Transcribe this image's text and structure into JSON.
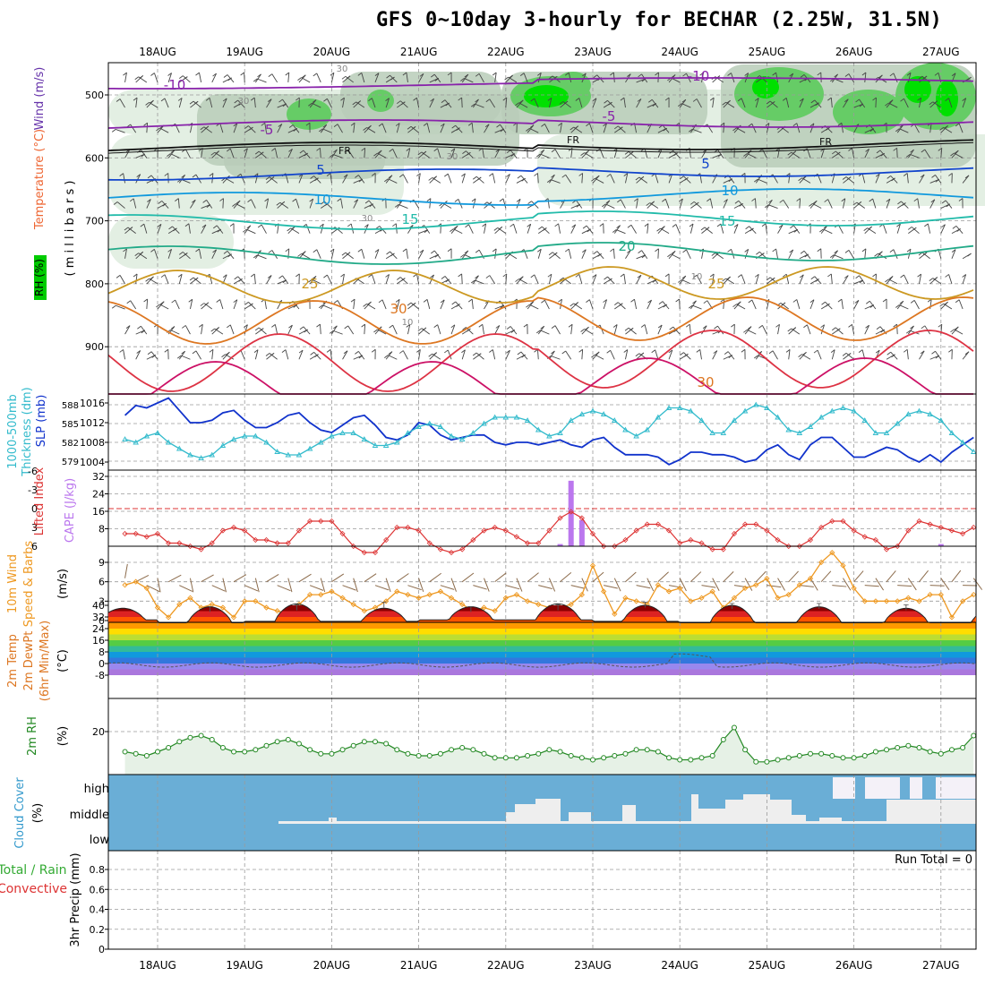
{
  "title": "GFS 0~10day 3-hourly for BECHAR (2.25W, 31.5N)",
  "dates": [
    "18AUG",
    "19AUG",
    "20AUG",
    "21AUG",
    "22AUG",
    "23AUG",
    "24AUG",
    "25AUG",
    "26AUG",
    "27AUG"
  ],
  "colors": {
    "frame": "#000000",
    "grid": "#9a9a9a",
    "rh_light": "#e3efe3",
    "rh_mid": "#b9ccb9",
    "rh_dark": "#66cc66",
    "rh_bright": "#00e000",
    "slp": "#1133cc",
    "thickness": "#33bbcc",
    "lifted_index": "#dd3333",
    "cape": "#bb77ee",
    "wind_speed": "#ee9922",
    "wind_barb": "#8b6a4a",
    "rh2m_fill": "#e6f1e6",
    "rh2m_line": "#228822",
    "cloud_bg": "#6aaed6",
    "cloud_fill": "#eeeeee"
  },
  "panels": {
    "upper": {
      "ylabel_wind": "Wind (m/s)",
      "ylabel_temp": "Temperature (°C)",
      "ylabel_rh": "RH (%)",
      "ylabel_mb": "( m i l l i b a r s )",
      "levels": [
        "500",
        "600",
        "700",
        "800",
        "900"
      ],
      "isotherm_labels": [
        {
          "text": "-10",
          "level": "-10"
        },
        {
          "text": "-10",
          "level": "-10"
        },
        {
          "text": "-5",
          "level": "-5"
        },
        {
          "text": "-5",
          "level": "-5"
        },
        {
          "text": "FR",
          "level": "0"
        },
        {
          "text": "FR",
          "level": "0"
        },
        {
          "text": "FR",
          "level": "0"
        },
        {
          "text": "5",
          "level": "5"
        },
        {
          "text": "5",
          "level": "5"
        },
        {
          "text": "10",
          "level": "10"
        },
        {
          "text": "10",
          "level": "10"
        },
        {
          "text": "15",
          "level": "15"
        },
        {
          "text": "15",
          "level": "15"
        },
        {
          "text": "20",
          "level": "20"
        },
        {
          "text": "25",
          "level": "25"
        },
        {
          "text": "25",
          "level": "25"
        },
        {
          "text": "30",
          "level": "30"
        },
        {
          "text": "30",
          "level": "30"
        }
      ],
      "rh_labels": [
        "30",
        "30",
        "30",
        "30",
        "10",
        "10"
      ]
    },
    "pressure": {
      "ylabel_thk": "1000-500mb Thickness (dm)",
      "ylabel_slp": "SLP (mb)",
      "thk_ticks": [
        "588",
        "585",
        "582",
        "579"
      ],
      "slp_ticks": [
        "1016",
        "1012",
        "1008",
        "1004"
      ]
    },
    "stability": {
      "ylabel_li": "Lifted Index",
      "ylabel_cape": "CAPE (J/kg)",
      "li_ticks": [
        "6",
        "3",
        "0",
        "-3",
        "-6"
      ],
      "cape_ticks": [
        "32",
        "24",
        "16",
        "8"
      ]
    },
    "wind10m": {
      "ylabel_main": "10m Wind",
      "ylabel_sub": "Speed & Barbs",
      "unit": "(m/s)",
      "ticks": [
        "9",
        "6",
        "3",
        "0"
      ]
    },
    "temp2m": {
      "ylabel_a": "2m Temp",
      "ylabel_b": "2m DewPt",
      "ylabel_c": "(6hr Min/Max)",
      "unit": "(°C)",
      "ticks": [
        "40",
        "32",
        "24",
        "16",
        "8",
        "0",
        "-8"
      ]
    },
    "rh2m": {
      "ylabel": "2m RH",
      "unit": "(%)",
      "ticks": [
        "20"
      ]
    },
    "cloud": {
      "ylabel": "Cloud Cover",
      "unit": "(%)",
      "levels": [
        "high",
        "middle",
        "low"
      ]
    },
    "precip": {
      "ylabel_a": "Total / Rain",
      "ylabel_b": "Convective",
      "ylabel_c": "3hr Precip (mm)",
      "ticks": [
        "0.8",
        "0.6",
        "0.4",
        "0.2",
        "0"
      ],
      "run_total": "Run Total = 0"
    }
  },
  "chart_data": {
    "type": "line",
    "x": [
      "17AUG 15Z",
      "17AUG 18Z",
      "17AUG 21Z",
      "18AUG 00Z",
      "18AUG 03Z",
      "18AUG 06Z",
      "18AUG 09Z",
      "18AUG 12Z",
      "18AUG 15Z",
      "18AUG 18Z",
      "18AUG 21Z",
      "19AUG 00Z",
      "19AUG 03Z",
      "19AUG 06Z",
      "19AUG 09Z",
      "19AUG 12Z",
      "19AUG 15Z",
      "19AUG 18Z",
      "19AUG 21Z",
      "20AUG 00Z",
      "20AUG 03Z",
      "20AUG 06Z",
      "20AUG 09Z",
      "20AUG 12Z",
      "20AUG 15Z",
      "20AUG 18Z",
      "20AUG 21Z",
      "21AUG 00Z",
      "21AUG 03Z",
      "21AUG 06Z",
      "21AUG 09Z",
      "21AUG 12Z",
      "21AUG 15Z",
      "21AUG 18Z",
      "21AUG 21Z",
      "22AUG 00Z",
      "22AUG 03Z",
      "22AUG 06Z",
      "22AUG 09Z",
      "22AUG 12Z",
      "22AUG 15Z",
      "22AUG 18Z",
      "22AUG 21Z",
      "23AUG 00Z",
      "23AUG 03Z",
      "23AUG 06Z",
      "23AUG 09Z",
      "23AUG 12Z",
      "23AUG 15Z",
      "23AUG 18Z",
      "23AUG 21Z",
      "24AUG 00Z",
      "24AUG 03Z",
      "24AUG 06Z",
      "24AUG 09Z",
      "24AUG 12Z",
      "24AUG 15Z",
      "24AUG 18Z",
      "24AUG 21Z",
      "25AUG 00Z",
      "25AUG 03Z",
      "25AUG 06Z",
      "25AUG 09Z",
      "25AUG 12Z",
      "25AUG 15Z",
      "25AUG 18Z",
      "25AUG 21Z",
      "26AUG 00Z",
      "26AUG 03Z",
      "26AUG 06Z",
      "26AUG 09Z",
      "26AUG 12Z",
      "26AUG 15Z",
      "26AUG 18Z",
      "26AUG 21Z",
      "27AUG 00Z",
      "27AUG 03Z",
      "27AUG 06Z",
      "27AUG 09Z"
    ],
    "series": [
      {
        "name": "SLP",
        "values": [
          1013.5,
          1015.5,
          1015.0,
          1016.0,
          1017.0,
          1014.5,
          1012.0,
          1012.0,
          1012.5,
          1014.0,
          1014.5,
          1012.5,
          1011.0,
          1011.0,
          1012.0,
          1013.5,
          1014.0,
          1012.0,
          1010.5,
          1010.0,
          1011.5,
          1013.0,
          1013.5,
          1011.5,
          1009.0,
          1008.5,
          1009.5,
          1012.0,
          1011.5,
          1009.5,
          1008.5,
          1009.0,
          1009.5,
          1009.5,
          1008.0,
          1007.5,
          1008.0,
          1008.0,
          1007.5,
          1008.0,
          1008.5,
          1007.5,
          1007.0,
          1008.5,
          1009.0,
          1007.0,
          1005.5,
          1005.5,
          1005.5,
          1005.0,
          1003.5,
          1004.5,
          1006.0,
          1006.0,
          1005.5,
          1005.5,
          1005.0,
          1004.0,
          1004.5,
          1006.5,
          1007.5,
          1005.5,
          1004.5,
          1007.5,
          1009.0,
          1009.0,
          1007.0,
          1005.0,
          1005.0,
          1006.0,
          1007.0,
          1006.5,
          1005.0,
          1004.0,
          1005.5,
          1004.0,
          1006.0,
          1007.5,
          1009.0
        ]
      },
      {
        "name": "1000-500mb Thickness",
        "values": [
          582.5,
          582.0,
          583.0,
          583.5,
          582.0,
          581.0,
          580.0,
          579.5,
          580.0,
          581.5,
          582.5,
          583.0,
          583.0,
          582.0,
          580.5,
          580.0,
          580.0,
          581.0,
          582.0,
          583.0,
          583.5,
          583.5,
          582.5,
          581.5,
          581.5,
          582.0,
          583.5,
          584.5,
          585.0,
          584.5,
          583.0,
          582.5,
          583.5,
          585.0,
          586.0,
          586.0,
          586.0,
          585.5,
          584.0,
          583.0,
          583.5,
          585.5,
          586.5,
          587.0,
          586.5,
          585.5,
          584.0,
          583.0,
          584.0,
          586.0,
          587.5,
          587.5,
          587.0,
          585.5,
          583.5,
          583.5,
          585.5,
          587.0,
          588.0,
          587.5,
          586.0,
          584.0,
          583.5,
          584.5,
          586.0,
          587.0,
          587.5,
          587.0,
          585.5,
          583.5,
          583.5,
          585.0,
          586.5,
          587.0,
          586.5,
          585.5,
          583.5,
          582.0,
          580.5
        ]
      },
      {
        "name": "Lifted Index",
        "values": [
          4.0,
          4.0,
          4.5,
          4.0,
          5.5,
          5.5,
          6.0,
          6.5,
          5.5,
          3.5,
          3.0,
          3.5,
          5.0,
          5.0,
          5.5,
          5.5,
          3.5,
          2.0,
          2.0,
          2.0,
          4.0,
          6.0,
          7.0,
          7.0,
          5.0,
          3.0,
          3.0,
          3.5,
          5.5,
          6.5,
          7.0,
          6.5,
          5.0,
          3.5,
          3.0,
          3.5,
          4.5,
          5.5,
          5.5,
          3.5,
          1.5,
          0.5,
          1.5,
          4.0,
          6.0,
          6.0,
          5.0,
          3.5,
          2.5,
          2.5,
          3.5,
          5.5,
          5.0,
          5.5,
          6.5,
          6.5,
          4.0,
          2.5,
          2.5,
          3.5,
          5.0,
          6.0,
          6.0,
          5.0,
          3.0,
          2.0,
          2.0,
          3.5,
          4.5,
          5.0,
          6.5,
          6.0,
          3.5,
          2.0,
          2.5,
          3.0,
          3.5,
          4.0,
          3.0
        ]
      },
      {
        "name": "CAPE",
        "values": [
          0,
          0,
          0,
          0,
          0,
          0,
          0,
          0,
          0,
          0,
          0,
          0,
          0,
          0,
          0,
          0,
          0,
          0,
          0,
          0,
          0,
          0,
          0,
          0,
          0,
          0,
          0,
          0,
          0,
          0,
          0,
          0,
          0,
          0,
          0,
          0,
          0,
          0,
          0,
          0,
          1,
          30,
          12,
          0,
          0,
          0,
          0,
          0,
          0,
          0,
          0,
          0,
          0,
          0,
          0,
          0,
          0,
          0,
          0,
          0,
          0,
          0,
          0,
          0,
          0,
          0,
          0,
          0,
          0,
          0,
          0,
          0,
          0,
          0,
          0,
          1,
          0,
          0,
          0
        ]
      },
      {
        "name": "10m Wind Speed",
        "values": [
          5.5,
          6.0,
          5.0,
          2.0,
          0.5,
          2.5,
          3.5,
          2.0,
          2.5,
          2.0,
          0.5,
          3.0,
          3.0,
          2.0,
          1.5,
          1.0,
          2.5,
          4.0,
          4.0,
          4.5,
          3.5,
          2.5,
          1.5,
          2.0,
          3.0,
          4.5,
          4.0,
          3.5,
          4.0,
          4.5,
          3.5,
          2.5,
          1.5,
          2.0,
          1.5,
          3.5,
          4.0,
          3.0,
          2.5,
          2.0,
          2.0,
          2.5,
          4.0,
          8.5,
          4.5,
          1.0,
          3.5,
          3.0,
          2.5,
          5.5,
          4.5,
          5.0,
          3.0,
          3.5,
          4.5,
          2.0,
          3.5,
          5.0,
          5.5,
          6.5,
          3.5,
          4.0,
          5.5,
          6.5,
          9.0,
          10.5,
          8.5,
          5.0,
          3.0,
          3.0,
          3.0,
          3.0,
          3.5,
          3.0,
          4.0,
          4.0,
          0.5,
          3.0,
          4.0
        ]
      },
      {
        "name": "2m RH",
        "values": [
          10,
          9,
          8,
          10,
          12,
          15,
          17,
          18,
          16,
          12,
          10,
          10,
          11,
          13,
          15,
          16,
          14,
          11,
          9,
          9,
          11,
          13,
          15,
          15,
          14,
          11,
          9,
          8,
          8,
          9,
          11,
          12,
          11,
          9,
          7,
          7,
          7,
          8,
          9,
          11,
          10,
          8,
          7,
          6,
          7,
          8,
          9,
          11,
          11,
          10,
          7,
          6,
          6,
          7,
          8,
          16,
          22,
          11,
          5,
          5,
          6,
          7,
          8,
          9,
          9,
          8,
          7,
          7,
          8,
          10,
          11,
          12,
          13,
          12,
          10,
          9,
          11,
          12,
          18
        ]
      }
    ],
    "temp2m_max": [
      38,
      39,
      41,
      38,
      39,
      41,
      40,
      40,
      39,
      38
    ],
    "temp2m_min": [
      30,
      28,
      29,
      29,
      30,
      30,
      29,
      28,
      28,
      28
    ]
  }
}
